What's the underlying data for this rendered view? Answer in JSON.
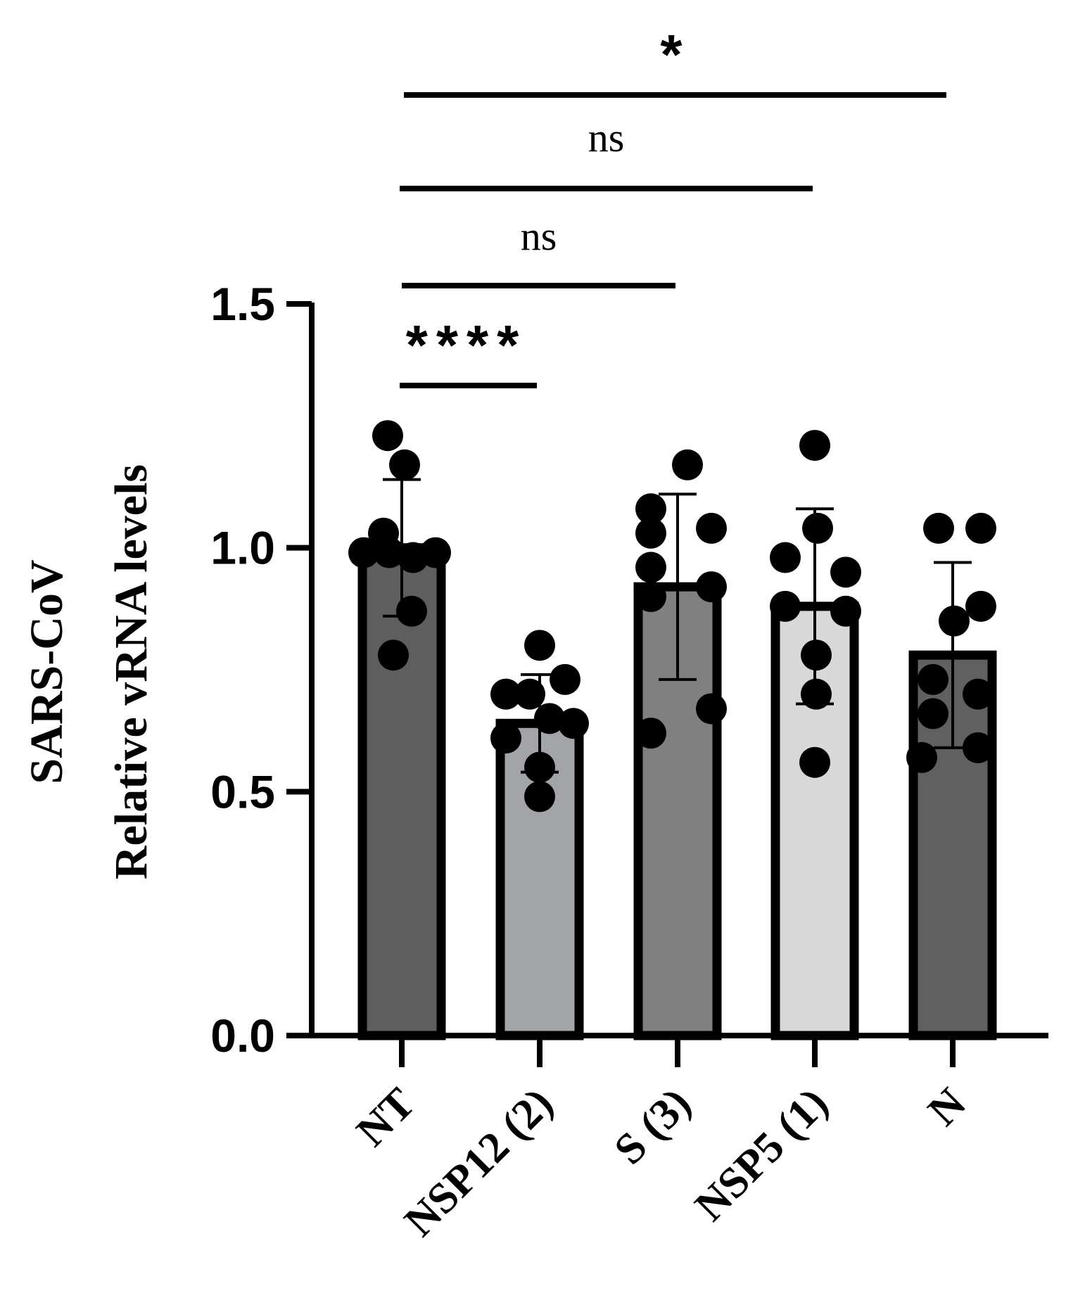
{
  "chart_data": {
    "type": "bar",
    "title": "",
    "xlabel": "",
    "ylabel_lines": [
      "SARS-CoV",
      "Relative vRNA levels"
    ],
    "ylim": [
      0,
      1.5
    ],
    "yticks": [
      0.0,
      0.5,
      1.0,
      1.5
    ],
    "ytick_labels": [
      "0.0",
      "0.5",
      "1.0",
      "1.5"
    ],
    "categories": [
      "NT",
      "NSP12 (2)",
      "S (3)",
      "NSP5 (1)",
      "N"
    ],
    "values": [
      1.0,
      0.64,
      0.92,
      0.88,
      0.78
    ],
    "error": [
      0.14,
      0.1,
      0.19,
      0.2,
      0.19
    ],
    "bar_colors": [
      "#5e5e5e",
      "#a3a4a8",
      "#808080",
      "#d8d8d8",
      "#606060"
    ],
    "points": [
      [
        1.23,
        1.17,
        1.03,
        0.99,
        0.99,
        0.98,
        0.99,
        0.87,
        0.78
      ],
      [
        0.8,
        0.73,
        0.7,
        0.7,
        0.65,
        0.64,
        0.61,
        0.55,
        0.49
      ],
      [
        1.17,
        1.08,
        1.04,
        1.03,
        0.96,
        0.92,
        0.9,
        0.67,
        0.62
      ],
      [
        1.21,
        1.04,
        0.98,
        0.95,
        0.88,
        0.87,
        0.78,
        0.7,
        0.56
      ],
      [
        1.04,
        1.04,
        0.88,
        0.85,
        0.73,
        0.7,
        0.66,
        0.59,
        0.57
      ]
    ],
    "significance": [
      {
        "label": "****",
        "from": 0,
        "to": 1
      },
      {
        "label": "ns",
        "from": 0,
        "to": 2
      },
      {
        "label": "ns",
        "from": 0,
        "to": 3
      },
      {
        "label": "*",
        "from": 0,
        "to": 4
      }
    ]
  }
}
